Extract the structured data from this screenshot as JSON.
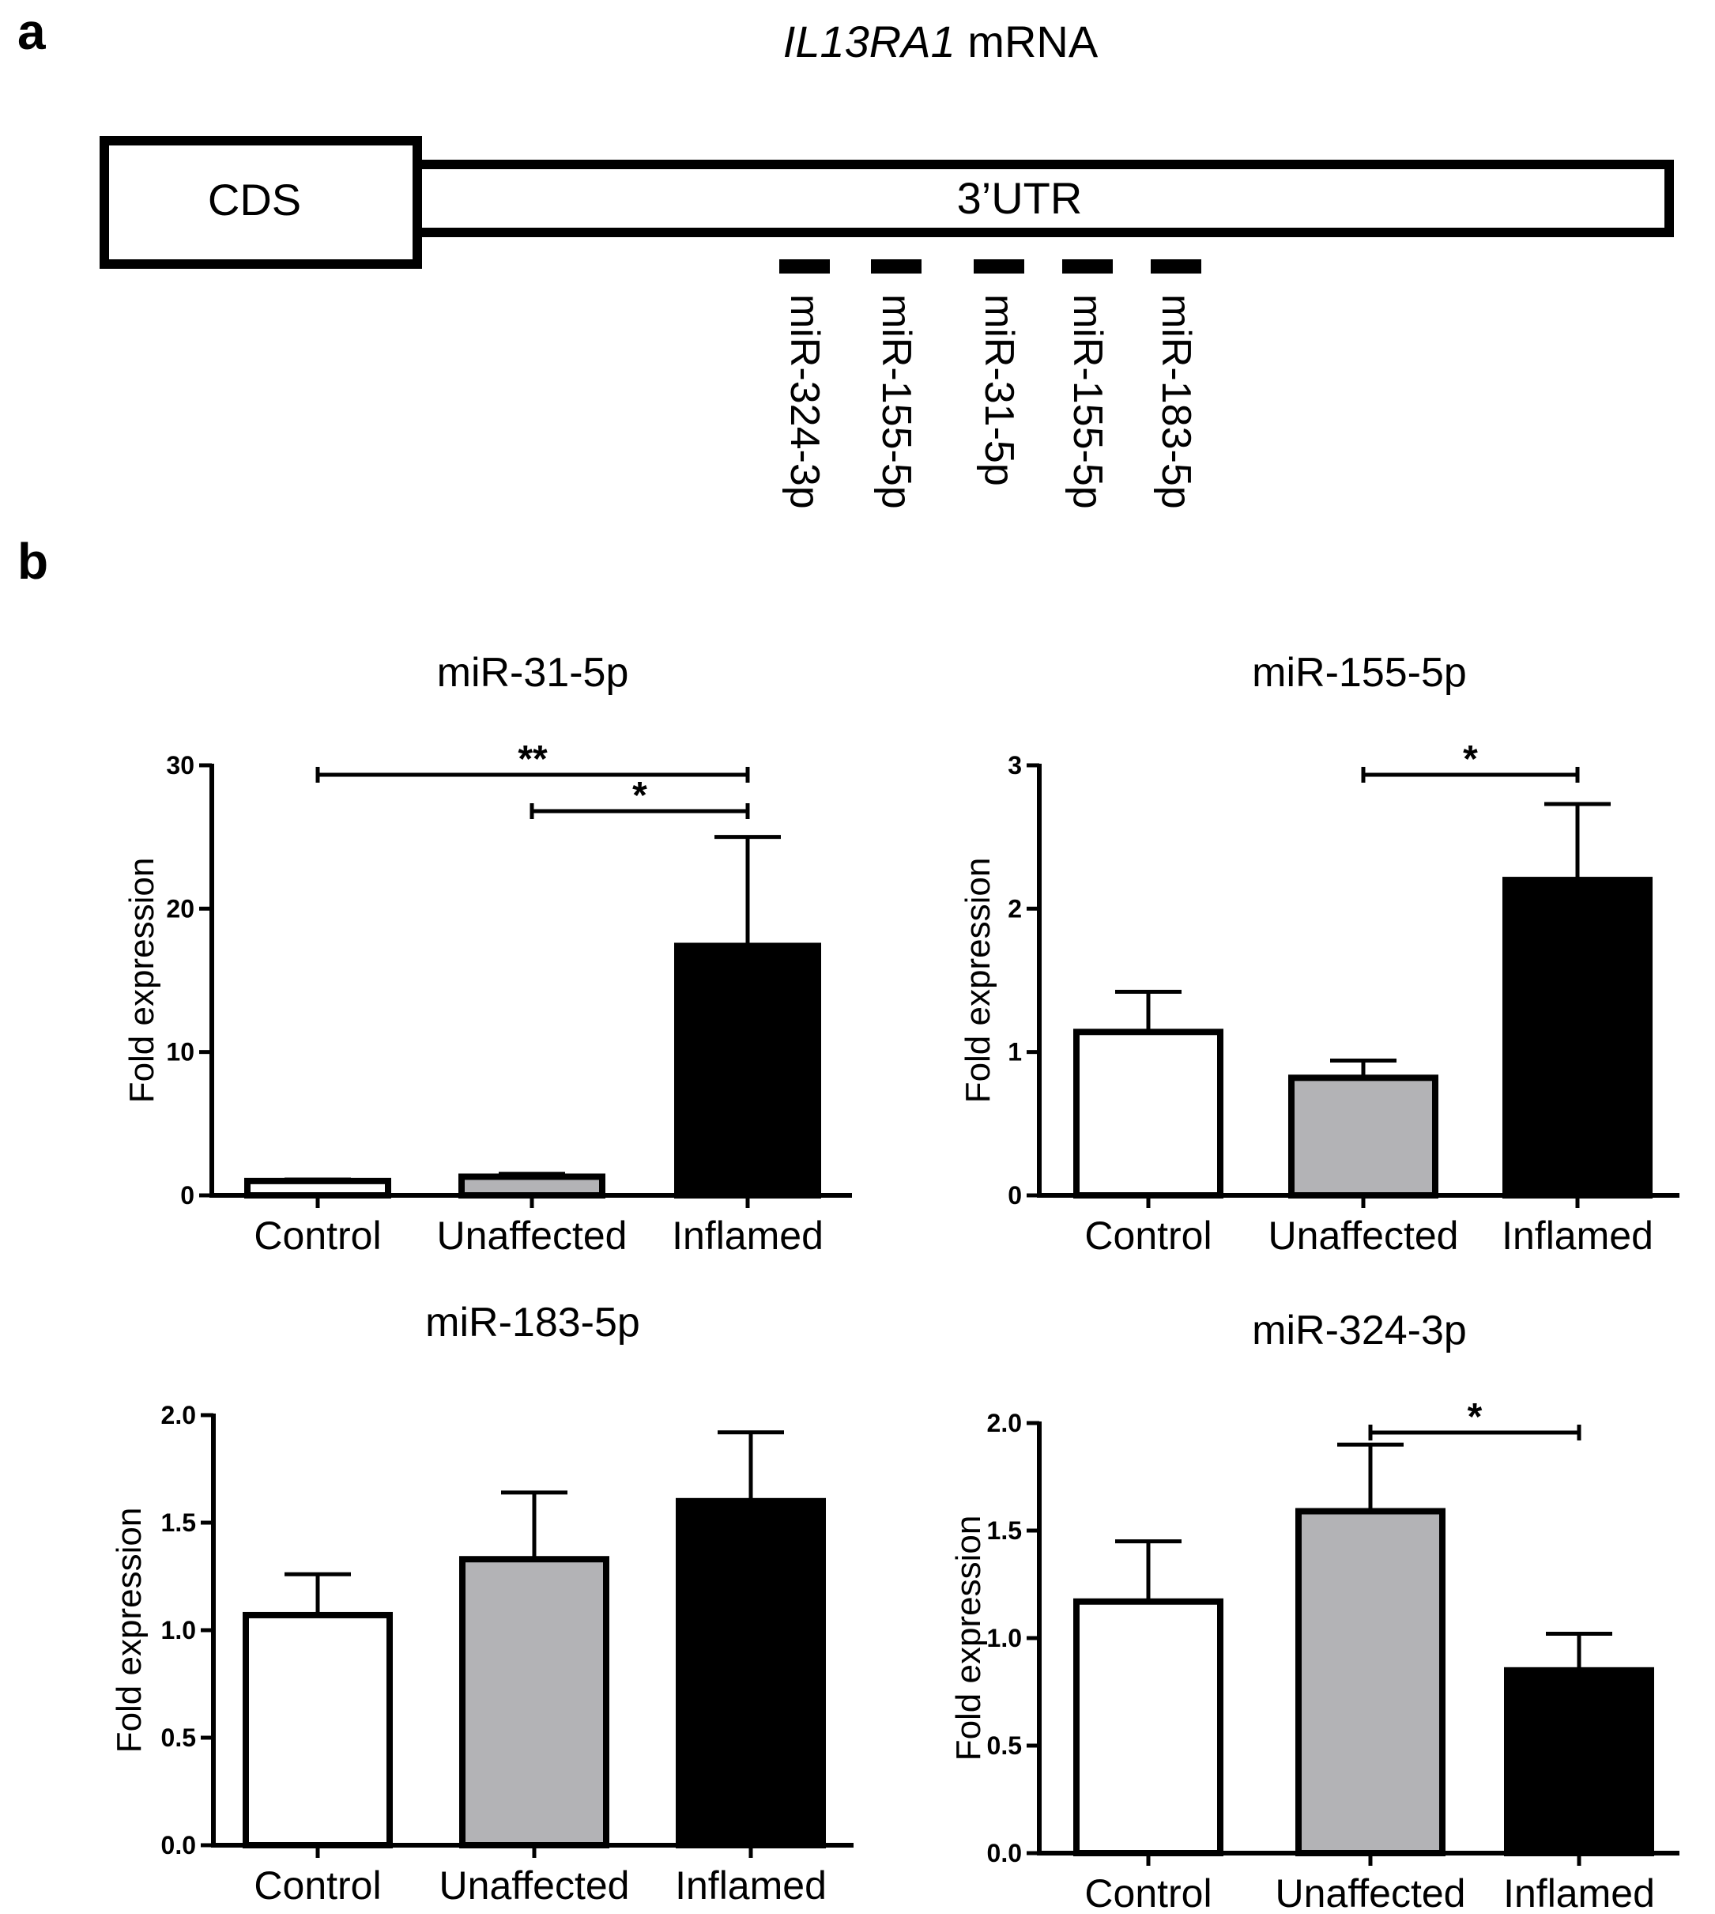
{
  "panel_a": {
    "letter": "a",
    "gene_title_italic": "IL13RA1",
    "gene_title_rest": " mRNA",
    "cds_label": "CDS",
    "utr_label": "3’UTR",
    "sites": [
      "miR-324-3p",
      "miR-155-5p",
      "miR-31-5p",
      "miR-155-5p",
      "miR-183-5p"
    ]
  },
  "panel_b": {
    "letter": "b"
  },
  "chart_data": [
    {
      "type": "bar",
      "title": "miR-31-5p",
      "xlabel": "",
      "ylabel": "Fold expression",
      "categories": [
        "Control",
        "Unaffected",
        "Inflamed"
      ],
      "values": [
        1.0,
        1.3,
        17.4
      ],
      "errors": [
        0.1,
        0.2,
        7.6
      ],
      "ylim": [
        0,
        30
      ],
      "yticks": [
        0,
        10,
        20,
        30
      ],
      "ytick_labels": [
        "0",
        "10",
        "20",
        "30"
      ],
      "bar_colors": [
        "#ffffff",
        "#b3b3b6",
        "#000000"
      ],
      "significance": [
        {
          "from": 0,
          "to": 2,
          "label": "**"
        },
        {
          "from": 1,
          "to": 2,
          "label": "*"
        }
      ]
    },
    {
      "type": "bar",
      "title": "miR-155-5p",
      "xlabel": "",
      "ylabel": "Fold expression",
      "categories": [
        "Control",
        "Unaffected",
        "Inflamed"
      ],
      "values": [
        1.14,
        0.82,
        2.2
      ],
      "errors": [
        0.28,
        0.12,
        0.53
      ],
      "ylim": [
        0,
        3
      ],
      "yticks": [
        0,
        1,
        2,
        3
      ],
      "ytick_labels": [
        "0",
        "1",
        "2",
        "3"
      ],
      "bar_colors": [
        "#ffffff",
        "#b3b3b6",
        "#000000"
      ],
      "significance": [
        {
          "from": 1,
          "to": 2,
          "label": "*"
        }
      ]
    },
    {
      "type": "bar",
      "title": "miR-183-5p",
      "xlabel": "",
      "ylabel": "Fold expression",
      "categories": [
        "Control",
        "Unaffected",
        "Inflamed"
      ],
      "values": [
        1.07,
        1.33,
        1.6
      ],
      "errors": [
        0.19,
        0.31,
        0.32
      ],
      "ylim": [
        0,
        2
      ],
      "yticks": [
        0,
        0.5,
        1,
        1.5,
        2
      ],
      "ytick_labels": [
        "0.0",
        "0.5",
        "1.0",
        "1.5",
        "2.0"
      ],
      "bar_colors": [
        "#ffffff",
        "#b3b3b6",
        "#000000"
      ],
      "significance": []
    },
    {
      "type": "bar",
      "title": "miR-324-3p",
      "xlabel": "",
      "ylabel": "Fold expression",
      "categories": [
        "Control",
        "Unaffected",
        "Inflamed"
      ],
      "values": [
        1.17,
        1.59,
        0.85
      ],
      "errors": [
        0.28,
        0.31,
        0.17
      ],
      "ylim": [
        0,
        2
      ],
      "yticks": [
        0,
        0.5,
        1,
        1.5,
        2
      ],
      "ytick_labels": [
        "0.0",
        "0.5",
        "1.0",
        "1.5",
        "2.0"
      ],
      "bar_colors": [
        "#ffffff",
        "#b3b3b6",
        "#000000"
      ],
      "significance": [
        {
          "from": 1,
          "to": 2,
          "label": "*"
        }
      ]
    }
  ]
}
